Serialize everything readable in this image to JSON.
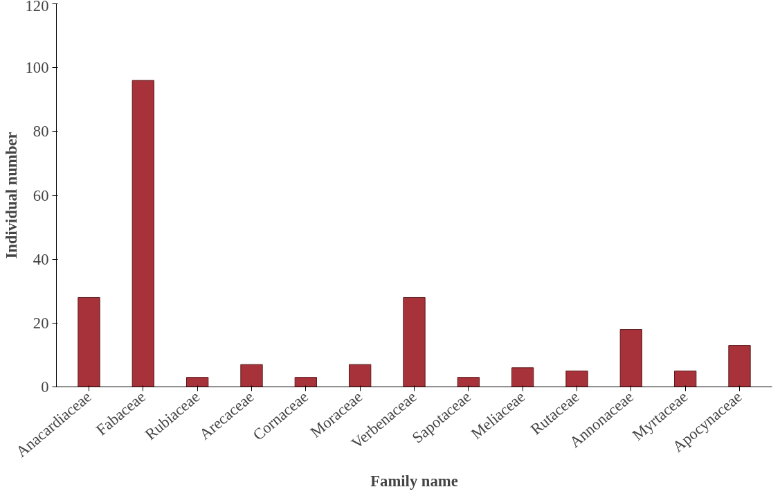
{
  "chart_data": {
    "type": "bar",
    "xlabel": "Family name",
    "ylabel": "Individual number",
    "categories": [
      "Anacardiaceae",
      "Fabaceae",
      "Rubiaceae",
      "Arecaceae",
      "Cornaceae",
      "Moraceae",
      "Verbenaceae",
      "Sapotaceae",
      "Meliaceae",
      "Rutaceae",
      "Annonaceae",
      "Myrtaceae",
      "Apocynaceae"
    ],
    "values": [
      28,
      96,
      3,
      7,
      3,
      7,
      28,
      3,
      6,
      5,
      18,
      5,
      13
    ],
    "color": "#a8323a",
    "ylim": [
      0,
      120
    ],
    "yticks": [
      0,
      20,
      40,
      60,
      80,
      100,
      120
    ],
    "grid": false
  }
}
